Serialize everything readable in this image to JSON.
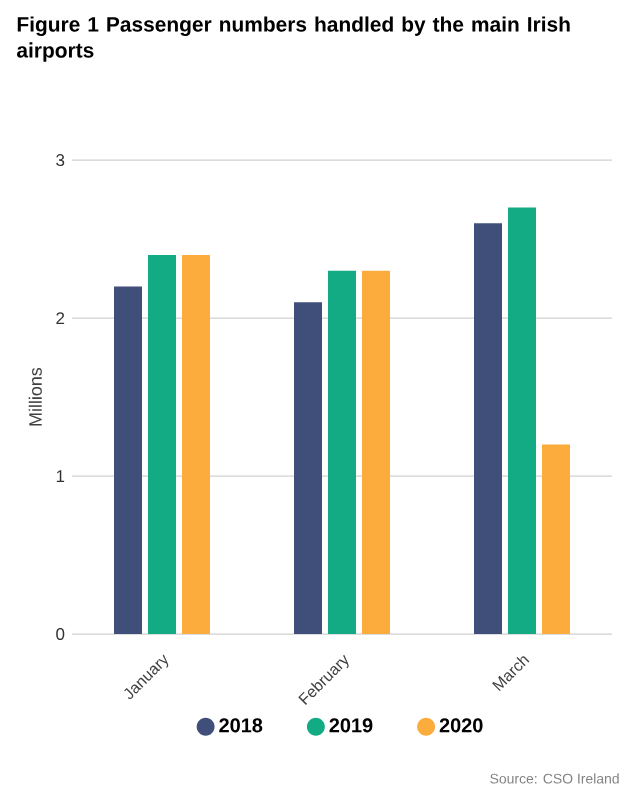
{
  "chart_data": {
    "type": "bar",
    "title": "Figure 1 Passenger numbers handled by the main Irish airports",
    "ylabel": "Millions",
    "categories": [
      "January",
      "February",
      "March"
    ],
    "series": [
      {
        "name": "2018",
        "color": "#3f4f7a",
        "values": [
          2.2,
          2.1,
          2.6
        ]
      },
      {
        "name": "2019",
        "color": "#12ab84",
        "values": [
          2.4,
          2.3,
          2.7
        ]
      },
      {
        "name": "2020",
        "color": "#fbac3c",
        "values": [
          2.4,
          2.3,
          1.2
        ]
      }
    ],
    "ylim": [
      0,
      3
    ],
    "yticks": [
      0,
      1,
      2,
      3
    ],
    "grid": "y",
    "legend": "bottom",
    "marker": "circle",
    "annotations": [
      "Source: CSO Ireland"
    ]
  }
}
